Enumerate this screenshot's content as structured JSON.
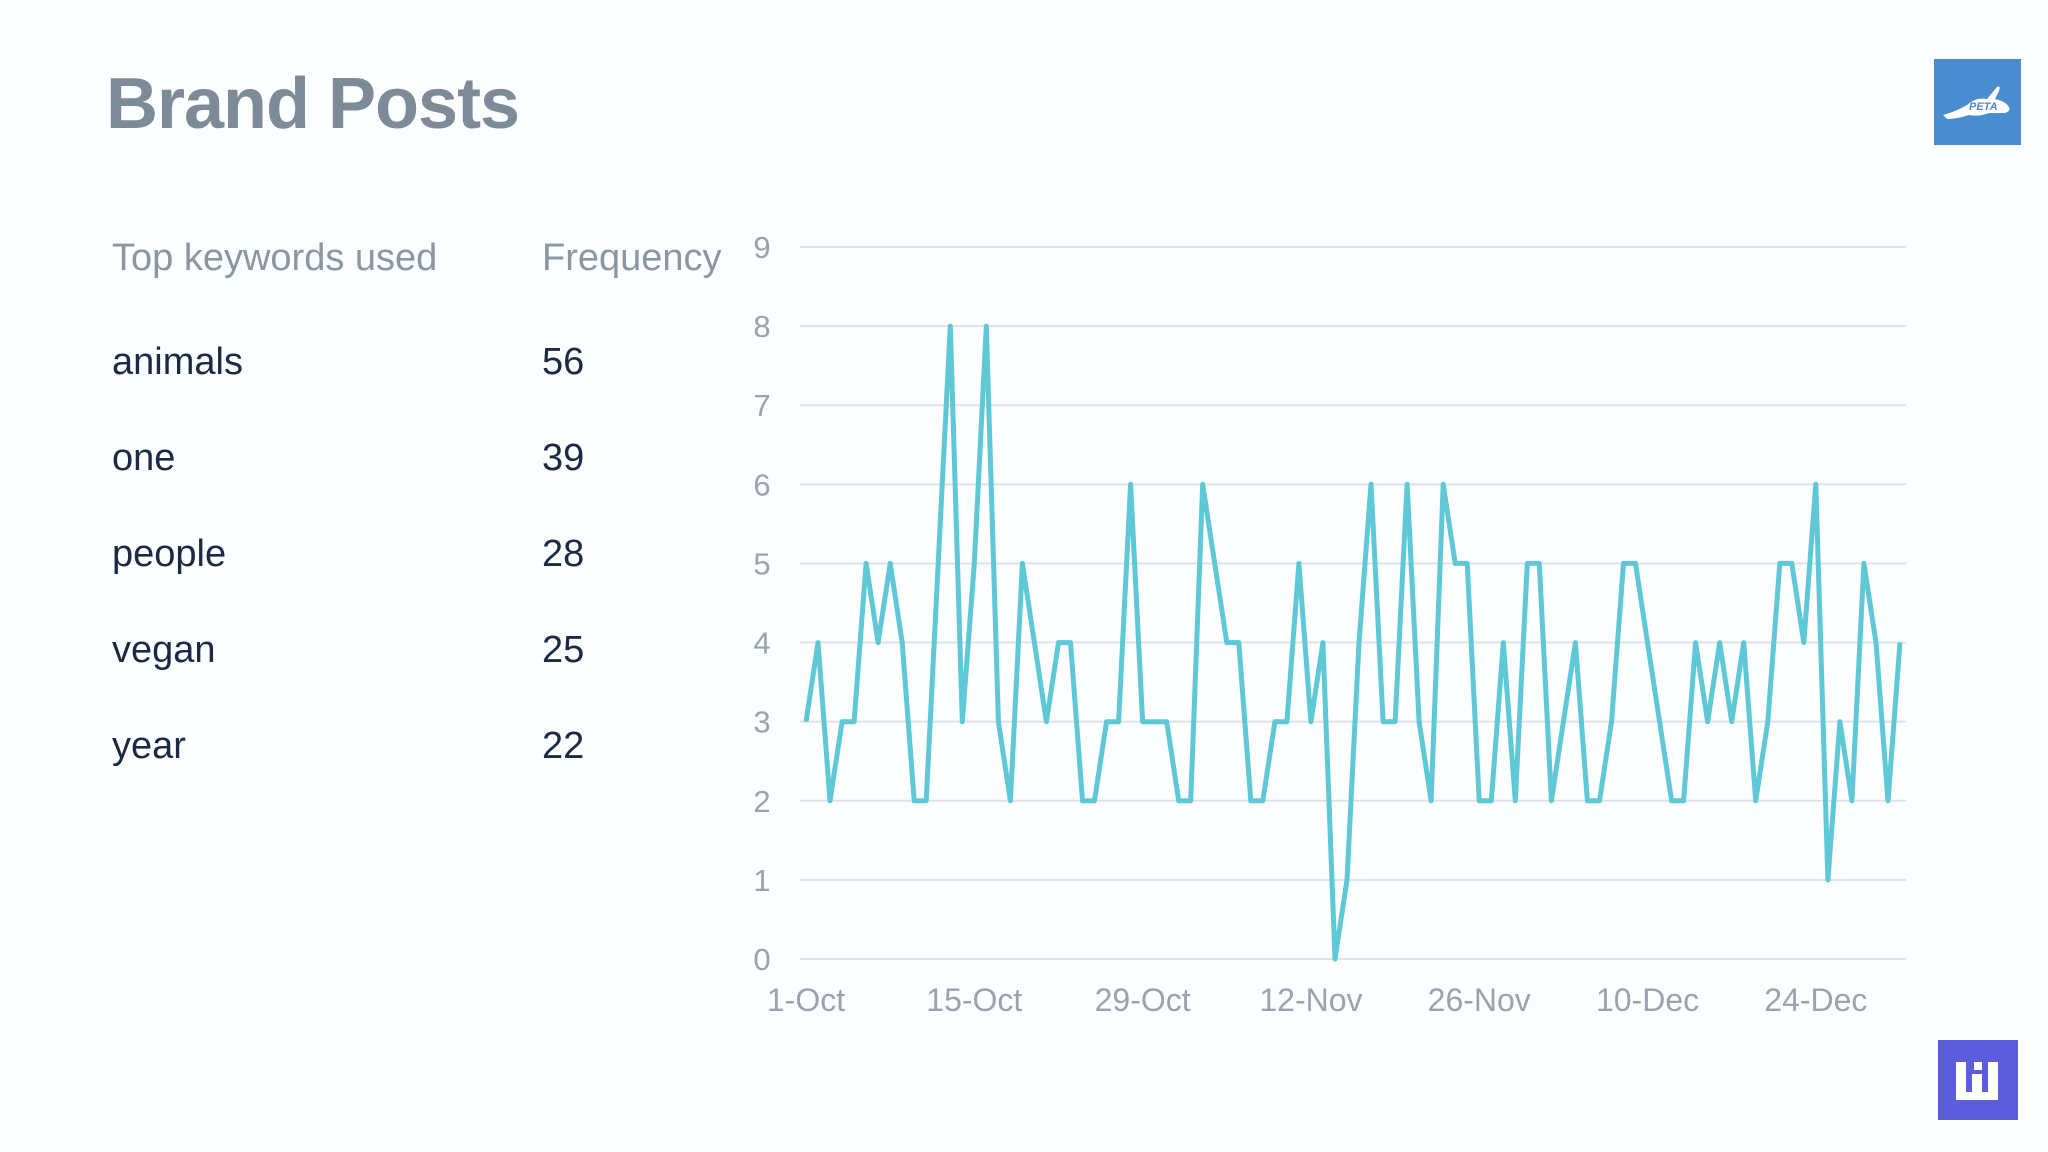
{
  "header": {
    "title": "Brand Posts"
  },
  "keywords": {
    "col_keyword": "Top keywords used",
    "col_frequency": "Frequency",
    "rows": [
      {
        "keyword": "animals",
        "frequency": "56"
      },
      {
        "keyword": "one",
        "frequency": "39"
      },
      {
        "keyword": "people",
        "frequency": "28"
      },
      {
        "keyword": "vegan",
        "frequency": "25"
      },
      {
        "keyword": "year",
        "frequency": "22"
      }
    ]
  },
  "logos": {
    "top_logo_text": "PETA"
  },
  "colors": {
    "line": "#5ec8d6",
    "grid": "#dfe3e8",
    "axis_text": "#9aa3ad"
  },
  "chart_data": {
    "type": "line",
    "ylim": [
      0,
      9
    ],
    "yticks": [
      "0",
      "1",
      "2",
      "3",
      "4",
      "5",
      "6",
      "7",
      "8",
      "9"
    ],
    "xticks": [
      "1-Oct",
      "15-Oct",
      "29-Oct",
      "12-Nov",
      "26-Nov",
      "10-Dec",
      "24-Dec"
    ],
    "xlabel": "",
    "ylabel": "",
    "grid": true,
    "series": [
      {
        "values": [
          3,
          4,
          2,
          3,
          3,
          5,
          4,
          5,
          4,
          2,
          2,
          5,
          8,
          3,
          5,
          8,
          3,
          2,
          5,
          4,
          3,
          4,
          4,
          2,
          2,
          3,
          3,
          6,
          3,
          3,
          3,
          2,
          2,
          6,
          5,
          4,
          4,
          2,
          2,
          3,
          3,
          5,
          3,
          4,
          0,
          1,
          4,
          6,
          3,
          3,
          6,
          3,
          2,
          6,
          5,
          5,
          2,
          2,
          4,
          2,
          5,
          5,
          2,
          3,
          4,
          2,
          2,
          3,
          5,
          5,
          4,
          3,
          2,
          2,
          4,
          3,
          4,
          3,
          4,
          2,
          3,
          5,
          5,
          4,
          6,
          1,
          3,
          2,
          5,
          4,
          2,
          4
        ]
      }
    ]
  }
}
